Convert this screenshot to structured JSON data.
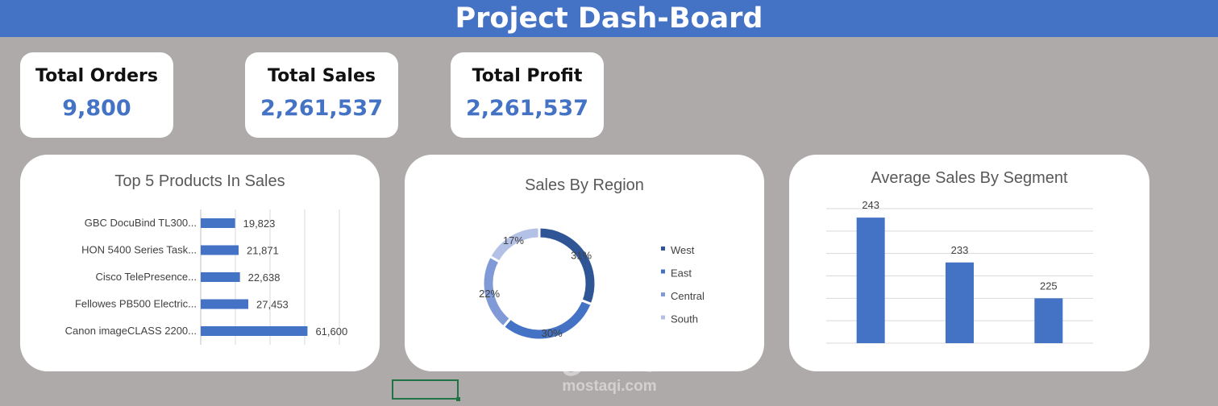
{
  "header": {
    "title": "Project Dash-Board"
  },
  "kpis": [
    {
      "label": "Total Orders",
      "value": "9,800"
    },
    {
      "label": "Total Sales",
      "value": "2,261,537"
    },
    {
      "label": "Total Profit",
      "value": "2,261,537"
    }
  ],
  "chart_data": [
    {
      "type": "bar",
      "orientation": "horizontal",
      "title": "Top 5 Products In Sales",
      "categories": [
        "GBC DocuBind TL300...",
        "HON 5400 Series Task...",
        "Cisco TelePresence...",
        "Fellowes PB500 Electric...",
        "Canon imageCLASS 2200..."
      ],
      "values": [
        19823,
        21871,
        22638,
        27453,
        61600
      ],
      "value_labels": [
        "19,823",
        "21,871",
        "22,638",
        "27,453",
        "61,600"
      ],
      "color": "#4472c4",
      "grid": true
    },
    {
      "type": "pie",
      "variant": "donut",
      "title": "Sales By Region",
      "categories": [
        "West",
        "East",
        "Central",
        "South"
      ],
      "values": [
        31,
        30,
        22,
        17
      ],
      "value_labels": [
        "31%",
        "30%",
        "22%",
        "17%"
      ],
      "colors": [
        "#2f5597",
        "#4472c4",
        "#7f9ad6",
        "#b4c1e6"
      ],
      "legend": "right"
    },
    {
      "type": "bar",
      "title": "Average Sales By Segment",
      "values": [
        243,
        233,
        225
      ],
      "value_labels": [
        "243",
        "233",
        "225"
      ],
      "ylim": [
        215,
        245
      ],
      "color": "#4472c4",
      "grid": true
    }
  ],
  "watermark": {
    "arabic": "مستقل",
    "latin": "mostaqi.com"
  }
}
